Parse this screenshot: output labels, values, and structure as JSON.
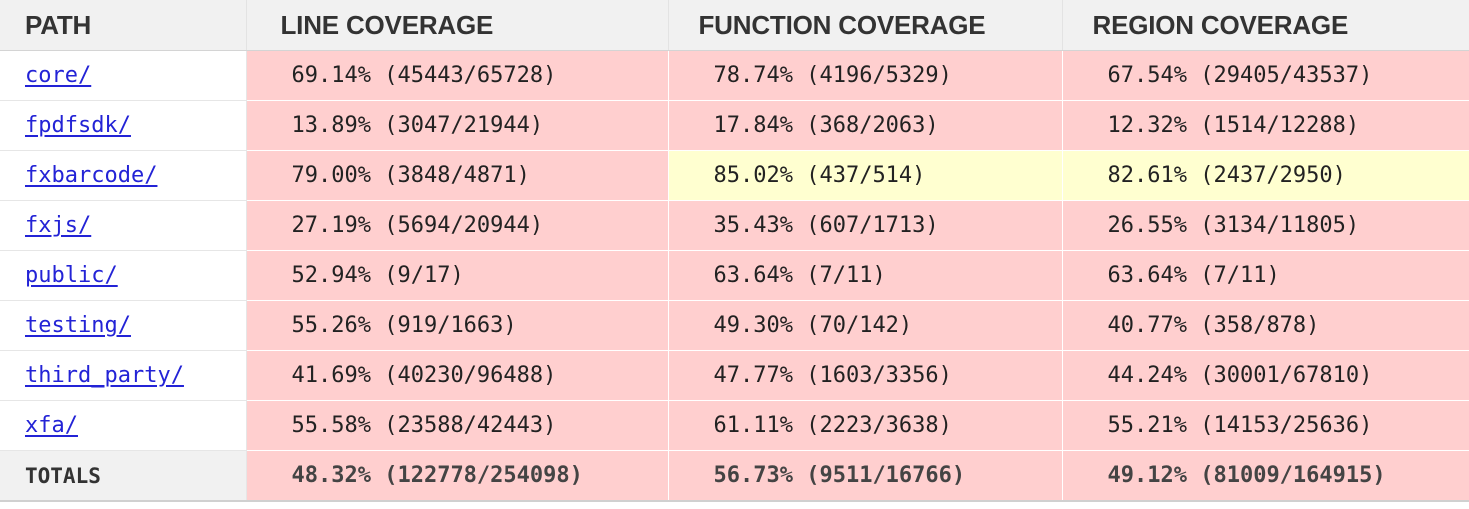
{
  "headers": {
    "path": "PATH",
    "line": "LINE COVERAGE",
    "function": "FUNCTION COVERAGE",
    "region": "REGION COVERAGE"
  },
  "rows": [
    {
      "path": "core/",
      "line": "69.14% (45443/65728)",
      "line_status": "red",
      "function": "78.74% (4196/5329)",
      "function_status": "red",
      "region": "67.54% (29405/43537)",
      "region_status": "red"
    },
    {
      "path": "fpdfsdk/",
      "line": "13.89% (3047/21944)",
      "line_status": "red",
      "function": "17.84% (368/2063)",
      "function_status": "red",
      "region": "12.32% (1514/12288)",
      "region_status": "red"
    },
    {
      "path": "fxbarcode/",
      "line": "79.00% (3848/4871)",
      "line_status": "red",
      "function": "85.02% (437/514)",
      "function_status": "yellow",
      "region": "82.61% (2437/2950)",
      "region_status": "yellow"
    },
    {
      "path": "fxjs/",
      "line": "27.19% (5694/20944)",
      "line_status": "red",
      "function": "35.43% (607/1713)",
      "function_status": "red",
      "region": "26.55% (3134/11805)",
      "region_status": "red"
    },
    {
      "path": "public/",
      "line": "52.94% (9/17)",
      "line_status": "red",
      "function": "63.64% (7/11)",
      "function_status": "red",
      "region": "63.64% (7/11)",
      "region_status": "red"
    },
    {
      "path": "testing/",
      "line": "55.26% (919/1663)",
      "line_status": "red",
      "function": "49.30% (70/142)",
      "function_status": "red",
      "region": "40.77% (358/878)",
      "region_status": "red"
    },
    {
      "path": "third_party/",
      "line": "41.69% (40230/96488)",
      "line_status": "red",
      "function": "47.77% (1603/3356)",
      "function_status": "red",
      "region": "44.24% (30001/67810)",
      "region_status": "red"
    },
    {
      "path": "xfa/",
      "line": "55.58% (23588/42443)",
      "line_status": "red",
      "function": "61.11% (2223/3638)",
      "function_status": "red",
      "region": "55.21% (14153/25636)",
      "region_status": "red"
    }
  ],
  "totals": {
    "label": "TOTALS",
    "line": "48.32% (122778/254098)",
    "function": "56.73% (9511/16766)",
    "region": "49.12% (81009/164915)"
  },
  "colors": {
    "red": "#ffcfcf",
    "yellow": "#ffffd0",
    "header_bg": "#f1f1f1",
    "link": "#2323d6"
  }
}
